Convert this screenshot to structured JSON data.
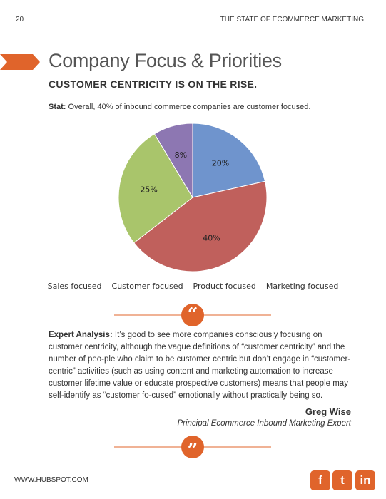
{
  "header": {
    "page_number": "20",
    "running_title": "THE STATE OF ECOMMERCE MARKETING"
  },
  "title": "Company Focus & Priorities",
  "subtitle": "CUSTOMER CENTRICITY IS ON THE RISE.",
  "stat": {
    "label": "Stat:",
    "text": "Overall, 40% of inbound commerce companies are customer focused."
  },
  "chart_data": {
    "type": "pie",
    "categories": [
      "Sales focused",
      "Customer focused",
      "Product focused",
      "Marketing focused"
    ],
    "values": [
      20,
      40,
      25,
      8
    ],
    "value_labels": [
      "20%",
      "40%",
      "25%",
      "8%"
    ],
    "colors": [
      "#6f94cd",
      "#c0605c",
      "#a9c56b",
      "#8d77b2"
    ],
    "legend": "bottom"
  },
  "quote_marks": [
    "“",
    "”"
  ],
  "expert_analysis": {
    "label": "Expert Analysis:",
    "text": "It’s good to see more companies consciously focusing on customer centricity, although the vague definitions of “customer centricity” and the number of peo-ple who claim to be customer centric but don’t engage in “customer-centric” activities (such as using content and marketing automation to increase customer lifetime value or educate prospective customers) means that people may self-identify as “customer fo-cused” emotionally without practically being so."
  },
  "author": {
    "name": "Greg Wise",
    "role": "Principal Ecommerce Inbound Marketing Expert"
  },
  "footer": {
    "url": "WWW.HUBSPOT.COM",
    "social": [
      "f",
      "t",
      "in"
    ]
  }
}
